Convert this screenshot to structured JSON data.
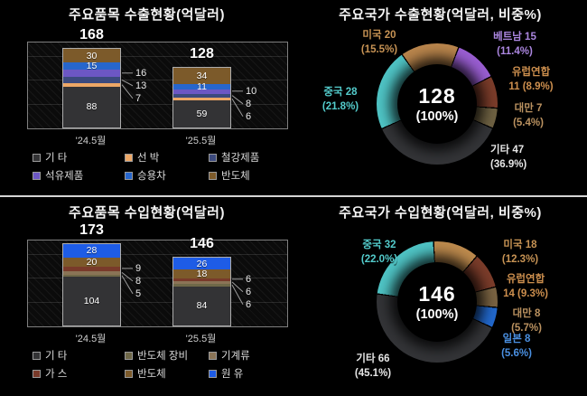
{
  "chart_data": [
    {
      "id": "export-items",
      "type": "bar",
      "stacked": true,
      "title": "주요품목 수출현황(억달러)",
      "categories": [
        "'24.5월",
        "'25.5월"
      ],
      "totals": [
        "168",
        "128"
      ],
      "ymax": 180,
      "grid_values": [
        50,
        100,
        150
      ],
      "legend_position": "bottom",
      "series": [
        {
          "name": "기 타",
          "color": "#333335",
          "values": [
            88,
            59
          ],
          "labels": "inside"
        },
        {
          "name": "선 박",
          "color": "#eda766",
          "values": [
            7,
            6
          ],
          "labels": "callout"
        },
        {
          "name": "철강제품",
          "color": "#3c4a7e",
          "values": [
            13,
            8
          ],
          "labels": "callout"
        },
        {
          "name": "석유제품",
          "color": "#6c57c4",
          "values": [
            16,
            10
          ],
          "labels": "callout"
        },
        {
          "name": "승용차",
          "color": "#2766cc",
          "values": [
            15,
            11
          ],
          "labels": "inside"
        },
        {
          "name": "반도체",
          "color": "#7c5a2a",
          "values": [
            30,
            34
          ],
          "labels": "inside"
        }
      ]
    },
    {
      "id": "export-countries",
      "type": "donut",
      "title": "주요국가 수출현황(억달러, 비중%)",
      "center": {
        "value": "128",
        "pct": "(100%)"
      },
      "start_angle": -36,
      "slices": [
        {
          "name": "미국",
          "value": 20,
          "pct": "15.5%",
          "color": "#b9854c",
          "label_color": "#c79354"
        },
        {
          "name": "베트남",
          "value": 15,
          "pct": "11.4%",
          "color": "#9a5ed2",
          "label_color": "#ab86e0"
        },
        {
          "name": "유럽연합",
          "value": 11,
          "pct": "8.9%",
          "color": "#7b3c2a",
          "label_color": "#cd8f4e"
        },
        {
          "name": "대만",
          "value": 7,
          "pct": "5.4%",
          "color": "#6e6142",
          "label_color": "#bb9260"
        },
        {
          "name": "기타",
          "value": 47,
          "pct": "36.9%",
          "color": "#333437",
          "label_color": "#e6e6e6"
        },
        {
          "name": "중국",
          "value": 28,
          "pct": "21.8%",
          "color": "#4fc4c5",
          "label_color": "#53cbcb"
        }
      ]
    },
    {
      "id": "import-items",
      "type": "bar",
      "stacked": true,
      "title": "주요품목 수입현황(억달러)",
      "categories": [
        "'24.5월",
        "'25.5월"
      ],
      "totals": [
        "173",
        "146"
      ],
      "ymax": 180,
      "grid_values": [
        50,
        100,
        150
      ],
      "legend_position": "bottom",
      "series": [
        {
          "name": "기 타",
          "color": "#333335",
          "values": [
            104,
            84
          ],
          "labels": "inside"
        },
        {
          "name": "반도체 장비",
          "color": "#6f6848",
          "values": [
            5,
            6
          ],
          "labels": "callout"
        },
        {
          "name": "기계류",
          "color": "#8a7456",
          "values": [
            8,
            6
          ],
          "labels": "callout"
        },
        {
          "name": "가 스",
          "color": "#793a2a",
          "values": [
            9,
            6
          ],
          "labels": "callout"
        },
        {
          "name": "반도체",
          "color": "#7c5a2a",
          "values": [
            20,
            18
          ],
          "labels": "inside"
        },
        {
          "name": "원 유",
          "color": "#1e5ce6",
          "values": [
            28,
            26
          ],
          "labels": "inside"
        }
      ]
    },
    {
      "id": "import-countries",
      "type": "donut",
      "title": "주요국가 수입현황(억달러, 비중%)",
      "center": {
        "value": "146",
        "pct": "(100%)"
      },
      "start_angle": -4,
      "slices": [
        {
          "name": "미국",
          "value": 18,
          "pct": "12.3%",
          "color": "#bd8a4d",
          "label_color": "#c79354"
        },
        {
          "name": "유럽연합",
          "value": 14,
          "pct": "9.3%",
          "color": "#7b3c2a",
          "label_color": "#cd8f4e"
        },
        {
          "name": "대만",
          "value": 8,
          "pct": "5.7%",
          "color": "#7a6342",
          "label_color": "#bb9260"
        },
        {
          "name": "일본",
          "value": 8,
          "pct": "5.6%",
          "color": "#2268cc",
          "label_color": "#4a90e2"
        },
        {
          "name": "기타",
          "value": 66,
          "pct": "45.1%",
          "color": "#333437",
          "label_color": "#e6e6e6"
        },
        {
          "name": "중국",
          "value": 32,
          "pct": "22.0%",
          "color": "#4fc4c5",
          "label_color": "#53cbcb"
        }
      ]
    }
  ]
}
